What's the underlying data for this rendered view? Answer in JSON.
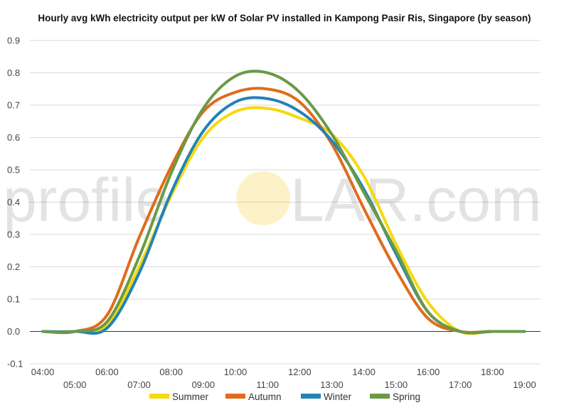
{
  "title": "Hourly avg kWh electricity output per kW of Solar PV installed in Kampong Pasir Ris, Singapore (by season)",
  "watermark": {
    "left": "profile",
    "right": "LAR.com"
  },
  "chart_data": {
    "type": "line",
    "title": "Hourly avg kWh electricity output per kW of Solar PV installed in Kampong Pasir Ris, Singapore (by season)",
    "xlabel": "",
    "ylabel": "",
    "x_upper": [
      "04:00",
      "06:00",
      "08:00",
      "10:00",
      "12:00",
      "14:00",
      "16:00",
      "18:00"
    ],
    "x_lower": [
      "05:00",
      "07:00",
      "09:00",
      "11:00",
      "13:00",
      "15:00",
      "17:00",
      "19:00"
    ],
    "x": [
      4,
      5,
      6,
      7,
      8,
      9,
      10,
      11,
      12,
      13,
      14,
      15,
      16,
      17,
      18,
      19
    ],
    "yticks": [
      "0.9",
      "0.8",
      "0.7",
      "0.6",
      "0.5",
      "0.4",
      "0.3",
      "0.2",
      "0.1",
      "0.0",
      "-0.1"
    ],
    "ylim": [
      -0.1,
      0.9
    ],
    "grid": true,
    "legend_position": "bottom",
    "series": [
      {
        "name": "Summer",
        "color": "#f6d90e",
        "values": [
          0.0,
          0.0,
          0.02,
          0.2,
          0.42,
          0.6,
          0.68,
          0.69,
          0.66,
          0.61,
          0.48,
          0.27,
          0.09,
          0.0,
          0.0,
          0.0
        ]
      },
      {
        "name": "Autumn",
        "color": "#e06b1c",
        "values": [
          0.0,
          0.0,
          0.05,
          0.29,
          0.51,
          0.68,
          0.74,
          0.75,
          0.71,
          0.58,
          0.38,
          0.19,
          0.04,
          0.0,
          0.0,
          0.0
        ]
      },
      {
        "name": "Winter",
        "color": "#2283b6",
        "values": [
          0.0,
          0.0,
          0.01,
          0.18,
          0.43,
          0.62,
          0.71,
          0.72,
          0.68,
          0.59,
          0.44,
          0.24,
          0.06,
          0.0,
          0.0,
          0.0
        ]
      },
      {
        "name": "Spring",
        "color": "#6a9a46",
        "values": [
          0.0,
          0.0,
          0.03,
          0.23,
          0.49,
          0.69,
          0.79,
          0.8,
          0.74,
          0.61,
          0.43,
          0.25,
          0.06,
          0.0,
          0.0,
          0.0
        ]
      }
    ]
  }
}
